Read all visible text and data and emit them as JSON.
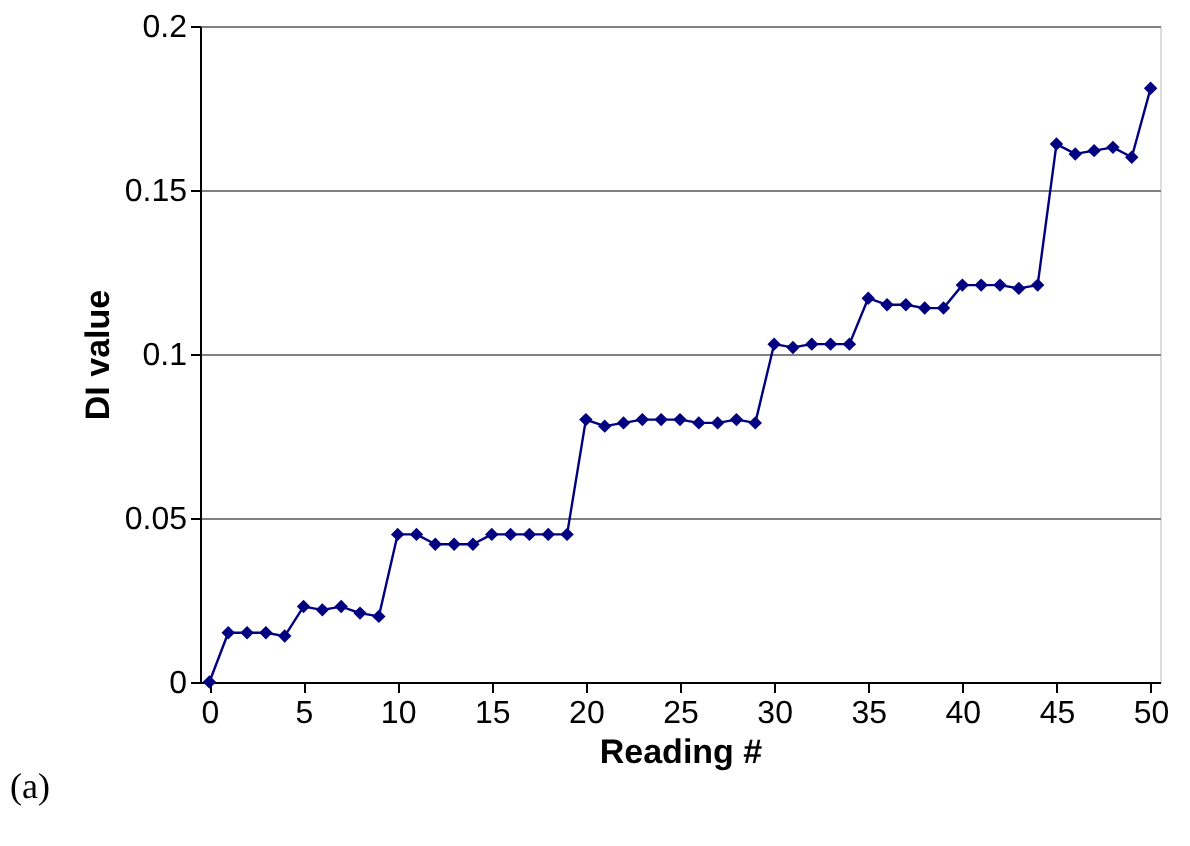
{
  "chart_data": {
    "type": "line",
    "xlabel": "Reading #",
    "ylabel": "DI value",
    "annotations": [
      "(a)"
    ],
    "x": [
      0,
      1,
      2,
      3,
      4,
      5,
      6,
      7,
      8,
      9,
      10,
      11,
      12,
      13,
      14,
      15,
      16,
      17,
      18,
      19,
      20,
      21,
      22,
      23,
      24,
      25,
      26,
      27,
      28,
      29,
      30,
      31,
      32,
      33,
      34,
      35,
      36,
      37,
      38,
      39,
      40,
      41,
      42,
      43,
      44,
      45,
      46,
      47,
      48,
      49,
      50
    ],
    "series": [
      {
        "color": "#000080",
        "values": [
          0,
          0.015,
          0.015,
          0.015,
          0.014,
          0.023,
          0.022,
          0.023,
          0.021,
          0.02,
          0.045,
          0.045,
          0.042,
          0.042,
          0.042,
          0.045,
          0.045,
          0.045,
          0.045,
          0.045,
          0.08,
          0.078,
          0.079,
          0.08,
          0.08,
          0.08,
          0.079,
          0.079,
          0.08,
          0.079,
          0.103,
          0.102,
          0.103,
          0.103,
          0.103,
          0.117,
          0.115,
          0.115,
          0.114,
          0.114,
          0.121,
          0.121,
          0.121,
          0.12,
          0.121,
          0.164,
          0.161,
          0.162,
          0.163,
          0.16,
          0.181
        ]
      }
    ],
    "xlim": [
      -0.5,
      50.5
    ],
    "xticks": [
      0,
      5,
      10,
      15,
      20,
      25,
      30,
      35,
      40,
      45,
      50
    ],
    "ylim": [
      0,
      0.2
    ],
    "yticks": [
      0,
      0.05,
      0.1,
      0.15,
      0.2
    ],
    "grid": "y",
    "marker": "diamond",
    "line_style": "solid",
    "legend": false
  }
}
